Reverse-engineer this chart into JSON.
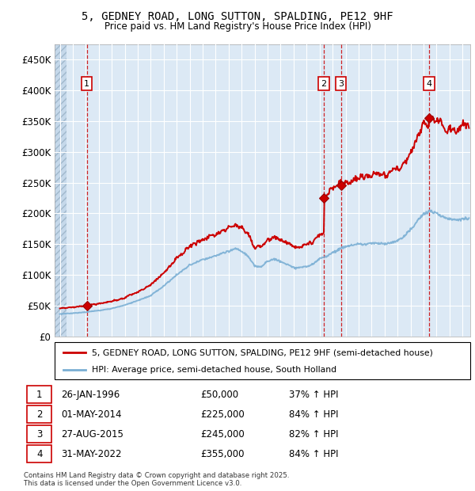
{
  "title": "5, GEDNEY ROAD, LONG SUTTON, SPALDING, PE12 9HF",
  "subtitle": "Price paid vs. HM Land Registry's House Price Index (HPI)",
  "ylim": [
    0,
    475000
  ],
  "yticks": [
    0,
    50000,
    100000,
    150000,
    200000,
    250000,
    300000,
    350000,
    400000,
    450000
  ],
  "ytick_labels": [
    "£0",
    "£50K",
    "£100K",
    "£150K",
    "£200K",
    "£250K",
    "£300K",
    "£350K",
    "£400K",
    "£450K"
  ],
  "xlim_start": 1993.6,
  "xlim_end": 2025.6,
  "background_color": "#dce9f5",
  "grid_color": "#ffffff",
  "sale_color": "#cc0000",
  "hpi_color": "#7aafd4",
  "transactions": [
    {
      "num": 1,
      "date_label": "26-JAN-1996",
      "year": 1996.07,
      "price": 50000,
      "hpi_pct": "37% ↑ HPI"
    },
    {
      "num": 2,
      "date_label": "01-MAY-2014",
      "year": 2014.33,
      "price": 225000,
      "hpi_pct": "84% ↑ HPI"
    },
    {
      "num": 3,
      "date_label": "27-AUG-2015",
      "year": 2015.65,
      "price": 245000,
      "hpi_pct": "82% ↑ HPI"
    },
    {
      "num": 4,
      "date_label": "31-MAY-2022",
      "year": 2022.42,
      "price": 355000,
      "hpi_pct": "84% ↑ HPI"
    }
  ],
  "legend_line1": "5, GEDNEY ROAD, LONG SUTTON, SPALDING, PE12 9HF (semi-detached house)",
  "legend_line2": "HPI: Average price, semi-detached house, South Holland",
  "footer": "Contains HM Land Registry data © Crown copyright and database right 2025.\nThis data is licensed under the Open Government Licence v3.0.",
  "hpi_knots": [
    [
      1994.0,
      35000
    ],
    [
      1995.0,
      36500
    ],
    [
      1996.0,
      38500
    ],
    [
      1997.0,
      41000
    ],
    [
      1998.0,
      44000
    ],
    [
      1999.0,
      49000
    ],
    [
      2000.0,
      56000
    ],
    [
      2001.0,
      65000
    ],
    [
      2002.0,
      80000
    ],
    [
      2003.0,
      98000
    ],
    [
      2004.0,
      114000
    ],
    [
      2005.0,
      122000
    ],
    [
      2006.0,
      128000
    ],
    [
      2007.0,
      136000
    ],
    [
      2007.5,
      140000
    ],
    [
      2008.0,
      136000
    ],
    [
      2008.5,
      128000
    ],
    [
      2009.0,
      112000
    ],
    [
      2009.5,
      113000
    ],
    [
      2010.0,
      121000
    ],
    [
      2010.5,
      125000
    ],
    [
      2011.0,
      122000
    ],
    [
      2011.5,
      118000
    ],
    [
      2012.0,
      112000
    ],
    [
      2012.5,
      112000
    ],
    [
      2013.0,
      115000
    ],
    [
      2013.5,
      120000
    ],
    [
      2014.0,
      128000
    ],
    [
      2014.5,
      133000
    ],
    [
      2015.0,
      140000
    ],
    [
      2015.5,
      145000
    ],
    [
      2016.0,
      150000
    ],
    [
      2016.5,
      152000
    ],
    [
      2017.0,
      155000
    ],
    [
      2017.5,
      156000
    ],
    [
      2018.0,
      157000
    ],
    [
      2018.5,
      158000
    ],
    [
      2019.0,
      158000
    ],
    [
      2019.5,
      160000
    ],
    [
      2020.0,
      162000
    ],
    [
      2020.5,
      168000
    ],
    [
      2021.0,
      178000
    ],
    [
      2021.5,
      192000
    ],
    [
      2022.0,
      204000
    ],
    [
      2022.5,
      208000
    ],
    [
      2023.0,
      205000
    ],
    [
      2023.5,
      198000
    ],
    [
      2024.0,
      195000
    ],
    [
      2024.5,
      196000
    ],
    [
      2025.0,
      198000
    ],
    [
      2025.5,
      200000
    ]
  ]
}
